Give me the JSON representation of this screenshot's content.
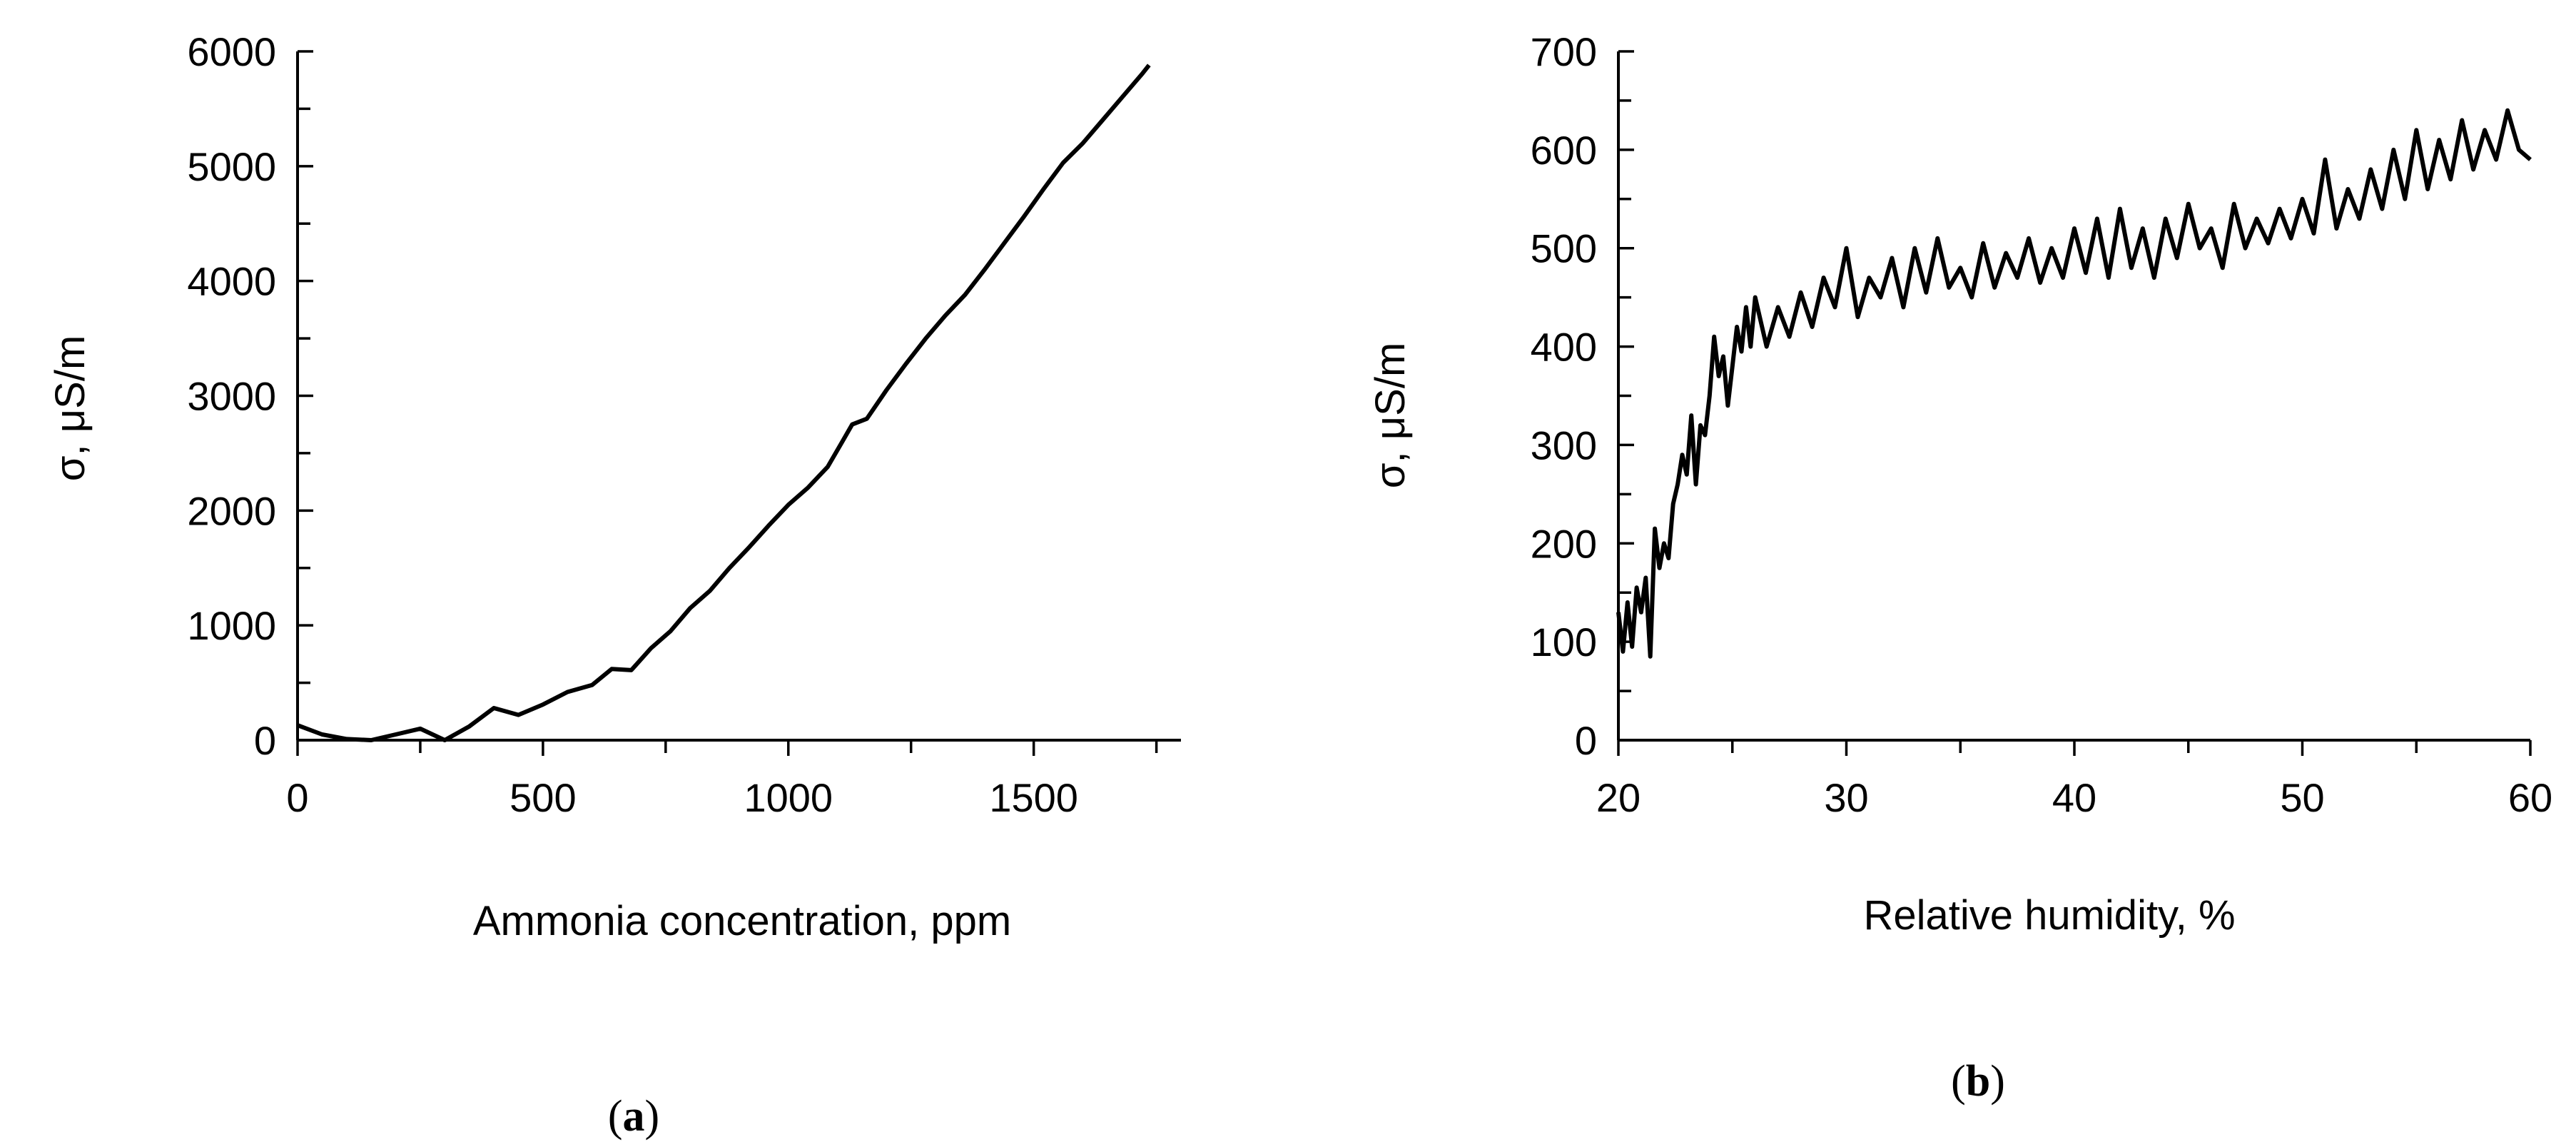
{
  "chart_data": [
    {
      "type": "line",
      "panel": "a",
      "xlabel": "Ammonia concentration, ppm",
      "ylabel": "σ, μS/m",
      "xlim": [
        0,
        1800
      ],
      "ylim": [
        0,
        6000
      ],
      "x_ticks": [
        0,
        500,
        1000,
        1500
      ],
      "x_tick_labels": [
        "0",
        "500",
        "1000",
        "1500"
      ],
      "y_ticks": [
        0,
        1000,
        2000,
        3000,
        4000,
        5000,
        6000
      ],
      "y_tick_labels": [
        "0",
        "1000",
        "2000",
        "3000",
        "4000",
        "5000",
        "6000"
      ],
      "grid": false,
      "series": [
        {
          "x": [
            0,
            50,
            100,
            150,
            200,
            250,
            300,
            350,
            400,
            450,
            500,
            550,
            600,
            640,
            680,
            720,
            760,
            800,
            840,
            880,
            920,
            960,
            1000,
            1040,
            1080,
            1110,
            1130,
            1160,
            1200,
            1240,
            1280,
            1320,
            1360,
            1400,
            1440,
            1480,
            1520,
            1560,
            1600,
            1640,
            1680,
            1720,
            1735
          ],
          "y": [
            130,
            50,
            10,
            0,
            50,
            100,
            0,
            120,
            280,
            220,
            310,
            420,
            480,
            620,
            610,
            800,
            950,
            1150,
            1300,
            1500,
            1680,
            1870,
            2050,
            2200,
            2380,
            2600,
            2750,
            2800,
            3050,
            3280,
            3500,
            3700,
            3880,
            4100,
            4330,
            4560,
            4800,
            5030,
            5200,
            5400,
            5600,
            5800,
            5880
          ]
        }
      ]
    },
    {
      "type": "line",
      "panel": "b",
      "xlabel": "Relative humidity, %",
      "ylabel": "σ, μS/m",
      "xlim": [
        20,
        60
      ],
      "ylim": [
        0,
        700
      ],
      "x_ticks": [
        20,
        30,
        40,
        50,
        60
      ],
      "x_tick_labels": [
        "20",
        "30",
        "40",
        "50",
        "60"
      ],
      "y_ticks": [
        0,
        100,
        200,
        300,
        400,
        500,
        600,
        700
      ],
      "y_tick_labels": [
        "0",
        "100",
        "200",
        "300",
        "400",
        "500",
        "600",
        "700"
      ],
      "grid": false,
      "series": [
        {
          "x": [
            20,
            20.2,
            20.4,
            20.6,
            20.8,
            21.0,
            21.2,
            21.4,
            21.6,
            21.8,
            22.0,
            22.2,
            22.4,
            22.6,
            22.8,
            23.0,
            23.2,
            23.4,
            23.6,
            23.8,
            24.0,
            24.2,
            24.4,
            24.6,
            24.8,
            25.0,
            25.2,
            25.4,
            25.6,
            25.8,
            26.0,
            26.5,
            27.0,
            27.5,
            28.0,
            28.5,
            29.0,
            29.5,
            30.0,
            30.5,
            31.0,
            31.5,
            32.0,
            32.5,
            33.0,
            33.5,
            34.0,
            34.5,
            35.0,
            35.5,
            36.0,
            36.5,
            37.0,
            37.5,
            38.0,
            38.5,
            39.0,
            39.5,
            40.0,
            40.5,
            41.0,
            41.5,
            42.0,
            42.5,
            43.0,
            43.5,
            44.0,
            44.5,
            45.0,
            45.5,
            46.0,
            46.5,
            47.0,
            47.5,
            48.0,
            48.5,
            49.0,
            49.5,
            50.0,
            50.5,
            51.0,
            51.5,
            52.0,
            52.5,
            53.0,
            53.5,
            54.0,
            54.5,
            55.0,
            55.5,
            56.0,
            56.5,
            57.0,
            57.5,
            58.0,
            58.5,
            59.0,
            59.5,
            60.0
          ],
          "y": [
            130,
            90,
            140,
            95,
            155,
            130,
            165,
            85,
            215,
            175,
            200,
            185,
            240,
            260,
            290,
            270,
            330,
            260,
            320,
            310,
            350,
            410,
            370,
            390,
            340,
            380,
            420,
            395,
            440,
            400,
            450,
            400,
            440,
            410,
            455,
            420,
            470,
            440,
            500,
            430,
            470,
            450,
            490,
            440,
            500,
            455,
            510,
            460,
            480,
            450,
            505,
            460,
            495,
            470,
            510,
            465,
            500,
            470,
            520,
            475,
            530,
            470,
            540,
            480,
            520,
            470,
            530,
            490,
            545,
            500,
            520,
            480,
            545,
            500,
            530,
            505,
            540,
            510,
            550,
            515,
            590,
            520,
            560,
            530,
            580,
            540,
            600,
            550,
            620,
            560,
            610,
            570,
            630,
            580,
            620,
            590,
            640,
            600,
            590
          ]
        }
      ]
    }
  ],
  "panels": {
    "a": {
      "label_open": "(",
      "label_letter": "a",
      "label_close": ")"
    },
    "b": {
      "label_open": "(",
      "label_letter": "b",
      "label_close": ")"
    }
  }
}
